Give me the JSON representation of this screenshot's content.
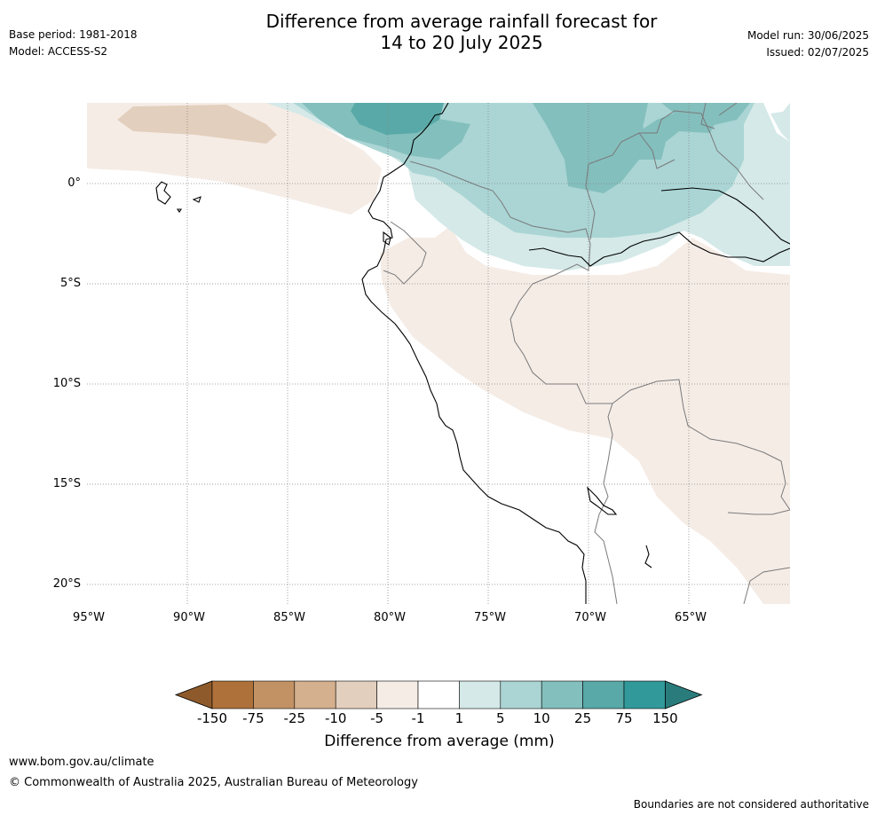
{
  "meta": {
    "base_period": "Base period: 1981-2018",
    "model": "Model: ACCESS-S2",
    "model_run": "Model run: 30/06/2025",
    "issued": "Issued: 02/07/2025"
  },
  "title": {
    "line1": "Difference from average rainfall forecast for",
    "line2": "14 to 20 July 2025"
  },
  "map": {
    "lon_range": [
      -95,
      -60
    ],
    "lat_range": [
      -21,
      4
    ],
    "lat_labels": [
      "0°",
      "5°S",
      "10°S",
      "15°S",
      "20°S"
    ],
    "lon_labels": [
      "95°W",
      "90°W",
      "85°W",
      "80°W",
      "75°W",
      "70°W",
      "65°W"
    ],
    "gridlines": true
  },
  "colorbar": {
    "title": "Difference from average (mm)",
    "labels": [
      "-150",
      "-75",
      "-25",
      "-10",
      "-5",
      "-1",
      "1",
      "5",
      "10",
      "25",
      "75",
      "150"
    ],
    "colors": [
      "#ae713a",
      "#c29265",
      "#d5b08e",
      "#e3cfbd",
      "#f5ece6",
      "#ffffff",
      "#d4e9e8",
      "#aad5d4",
      "#83bfbd",
      "#58a9a7",
      "#32999a"
    ],
    "under_color": "#8e5a2b",
    "over_color": "#2a7c7c"
  },
  "footer": {
    "url": "www.bom.gov.au/climate",
    "copyright": "© Commonwealth of Australia 2025, Australian Bureau of Meteorology",
    "disclaimer": "Boundaries are not considered authoritative"
  }
}
